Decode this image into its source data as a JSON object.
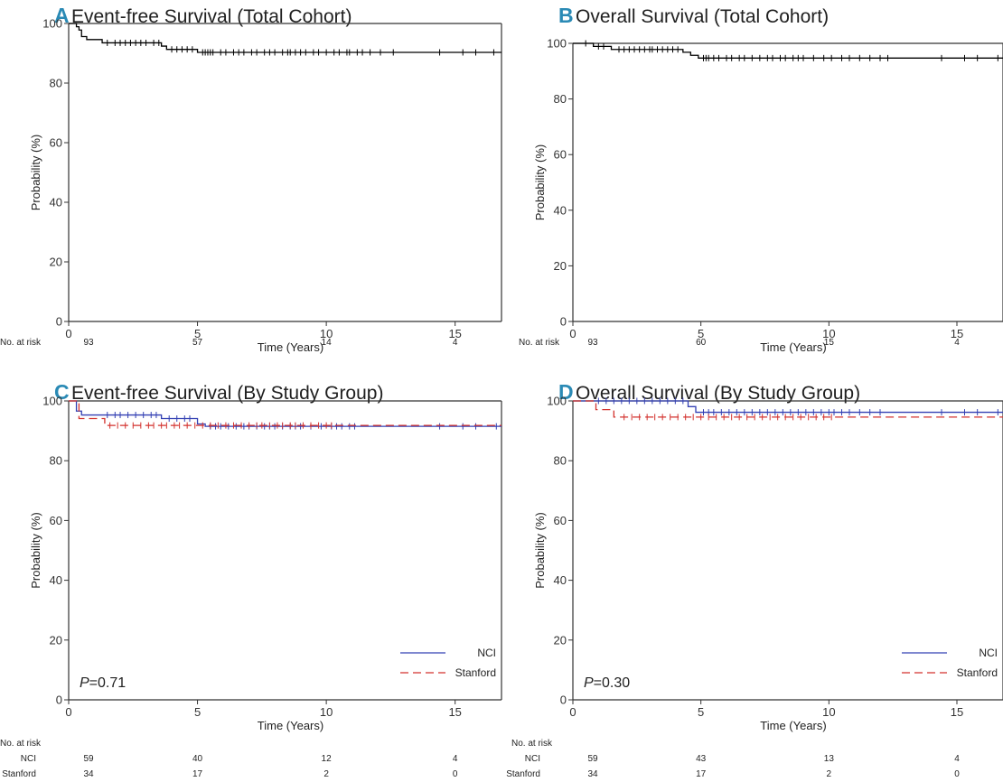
{
  "chart_data": [
    {
      "type": "line",
      "panel_label": "A",
      "title": "Event-free Survival (Total Cohort)",
      "xlabel": "Time (Years)",
      "ylabel": "Probability (%)",
      "xlim": [
        0,
        16.8
      ],
      "ylim": [
        0,
        100
      ],
      "xticks": [
        0,
        5,
        10,
        15
      ],
      "yticks": [
        0,
        20,
        40,
        60,
        80,
        100
      ],
      "series": [
        {
          "name": "",
          "color": "#000000",
          "dash": "",
          "steps": [
            [
              0,
              100
            ],
            [
              0.3,
              98.9
            ],
            [
              0.4,
              97.8
            ],
            [
              0.5,
              95.6
            ],
            [
              0.7,
              94.6
            ],
            [
              1.3,
              93.5
            ],
            [
              3.6,
              92.4
            ],
            [
              3.8,
              91.3
            ],
            [
              5.0,
              90.3
            ]
          ],
          "censors": [
            1.5,
            1.8,
            2.0,
            2.2,
            2.4,
            2.6,
            2.8,
            3.0,
            3.3,
            3.5,
            4.0,
            4.2,
            4.4,
            4.6,
            4.8,
            5.2,
            5.3,
            5.4,
            5.5,
            5.6,
            5.9,
            6.1,
            6.4,
            6.6,
            6.8,
            7.1,
            7.3,
            7.6,
            7.8,
            8.0,
            8.3,
            8.5,
            8.6,
            8.8,
            9.0,
            9.2,
            9.5,
            9.7,
            10.0,
            10.3,
            10.5,
            10.8,
            10.9,
            11.2,
            11.4,
            11.7,
            12.1,
            12.6,
            14.4,
            15.3,
            15.8,
            16.5
          ]
        }
      ],
      "risk_title": "No. at risk",
      "risk_rows": [
        {
          "label": "",
          "values": [
            93,
            57,
            14,
            4
          ]
        }
      ],
      "legend": false,
      "pvalue": null
    },
    {
      "type": "line",
      "panel_label": "B",
      "title": "Overall Survival (Total Cohort)",
      "xlabel": "Time (Years)",
      "ylabel": "Probability (%)",
      "xlim": [
        0,
        16.8
      ],
      "ylim": [
        0,
        100
      ],
      "xticks": [
        0,
        5,
        10,
        15
      ],
      "yticks": [
        0,
        20,
        40,
        60,
        80,
        100
      ],
      "series": [
        {
          "name": "",
          "color": "#000000",
          "dash": "",
          "steps": [
            [
              0,
              100
            ],
            [
              0.8,
              98.9
            ],
            [
              1.5,
              97.8
            ],
            [
              4.3,
              96.8
            ],
            [
              4.6,
              95.7
            ],
            [
              4.9,
              94.7
            ]
          ],
          "censors": [
            0.5,
            1.0,
            1.2,
            1.8,
            2.0,
            2.2,
            2.4,
            2.6,
            2.8,
            3.0,
            3.1,
            3.3,
            3.5,
            3.7,
            3.9,
            4.1,
            5.1,
            5.2,
            5.3,
            5.5,
            5.7,
            6.0,
            6.2,
            6.5,
            6.7,
            7.0,
            7.3,
            7.6,
            7.8,
            8.1,
            8.3,
            8.6,
            8.8,
            9.0,
            9.4,
            9.8,
            10.1,
            10.5,
            10.8,
            11.2,
            11.6,
            12.0,
            12.3,
            14.4,
            15.3,
            15.8,
            16.6
          ]
        }
      ],
      "risk_title": "No. at risk",
      "risk_rows": [
        {
          "label": "",
          "values": [
            93,
            60,
            15,
            4
          ]
        }
      ],
      "legend": false,
      "pvalue": null
    },
    {
      "type": "line",
      "panel_label": "C",
      "title": "Event-free Survival (By Study Group)",
      "xlabel": "Time (Years)",
      "ylabel": "Probability (%)",
      "xlim": [
        0,
        16.8
      ],
      "ylim": [
        0,
        100
      ],
      "xticks": [
        0,
        5,
        10,
        15
      ],
      "yticks": [
        0,
        20,
        40,
        60,
        80,
        100
      ],
      "series": [
        {
          "name": "NCI",
          "color": "#3340b3",
          "dash": "",
          "steps": [
            [
              0,
              100
            ],
            [
              0.3,
              96.6
            ],
            [
              0.5,
              95.3
            ],
            [
              3.6,
              94.1
            ],
            [
              5.0,
              92.3
            ],
            [
              5.3,
              91.5
            ]
          ],
          "censors": [
            1.5,
            1.8,
            2.0,
            2.3,
            2.6,
            2.9,
            3.2,
            3.4,
            3.9,
            4.2,
            4.5,
            4.7,
            5.5,
            5.7,
            5.9,
            6.2,
            6.5,
            6.8,
            7.0,
            7.3,
            7.6,
            7.8,
            8.0,
            8.3,
            8.6,
            8.8,
            9.0,
            9.4,
            9.8,
            10.2,
            10.4,
            10.6,
            10.9,
            11.1,
            14.4,
            15.3,
            15.8,
            16.6
          ]
        },
        {
          "name": "Stanford",
          "color": "#d3322e",
          "dash": "9 5",
          "steps": [
            [
              0,
              100
            ],
            [
              0.4,
              94.1
            ],
            [
              1.4,
              91.8
            ]
          ],
          "censors": [
            1.6,
            1.9,
            2.2,
            2.5,
            2.8,
            3.1,
            3.3,
            3.6,
            3.8,
            4.1,
            4.3,
            4.6,
            4.9,
            5.2,
            5.5,
            5.8,
            6.1,
            6.4,
            6.7,
            7.0,
            7.3,
            7.5,
            7.8,
            8.1,
            8.3,
            8.6,
            8.8,
            9.1,
            9.4,
            9.7,
            10.0,
            10.2
          ]
        }
      ],
      "risk_title": "No. at risk",
      "risk_rows": [
        {
          "label": "NCI",
          "values": [
            59,
            40,
            12,
            4
          ]
        },
        {
          "label": "Stanford",
          "values": [
            34,
            17,
            2,
            0
          ]
        }
      ],
      "legend": true,
      "pvalue": {
        "prefix": "P",
        "text": "=0.71"
      }
    },
    {
      "type": "line",
      "panel_label": "D",
      "title": "Overall Survival (By Study Group)",
      "xlabel": "Time (Years)",
      "ylabel": "Probability (%)",
      "xlim": [
        0,
        16.8
      ],
      "ylim": [
        0,
        100
      ],
      "xticks": [
        0,
        5,
        10,
        15
      ],
      "yticks": [
        0,
        20,
        40,
        60,
        80,
        100
      ],
      "series": [
        {
          "name": "NCI",
          "color": "#3340b3",
          "dash": "",
          "steps": [
            [
              0,
              100
            ],
            [
              4.5,
              98.1
            ],
            [
              4.8,
              96.2
            ]
          ],
          "censors": [
            1.0,
            1.3,
            1.6,
            1.9,
            2.2,
            2.5,
            2.8,
            3.1,
            3.4,
            3.7,
            4.0,
            4.3,
            5.1,
            5.3,
            5.5,
            5.8,
            6.1,
            6.4,
            6.7,
            7.0,
            7.3,
            7.6,
            7.9,
            8.2,
            8.5,
            8.8,
            9.1,
            9.4,
            9.7,
            10.0,
            10.2,
            10.5,
            10.8,
            11.2,
            11.6,
            12.0,
            14.4,
            15.3,
            15.8,
            16.6
          ]
        },
        {
          "name": "Stanford",
          "color": "#d3322e",
          "dash": "9 5",
          "steps": [
            [
              0,
              100
            ],
            [
              0.9,
              97.1
            ],
            [
              1.6,
              94.6
            ]
          ],
          "censors": [
            2.0,
            2.3,
            2.6,
            2.9,
            3.2,
            3.5,
            3.8,
            4.1,
            4.4,
            4.7,
            5.0,
            5.3,
            5.6,
            5.9,
            6.2,
            6.5,
            6.8,
            7.1,
            7.4,
            7.7,
            8.0,
            8.3,
            8.6,
            8.9,
            9.2,
            9.5,
            9.8,
            10.1
          ]
        }
      ],
      "risk_title": "No. at risk",
      "risk_rows": [
        {
          "label": "NCI",
          "values": [
            59,
            43,
            13,
            4
          ]
        },
        {
          "label": "Stanford",
          "values": [
            34,
            17,
            2,
            0
          ]
        }
      ],
      "legend": true,
      "pvalue": {
        "prefix": "P",
        "text": "=0.30"
      }
    }
  ]
}
